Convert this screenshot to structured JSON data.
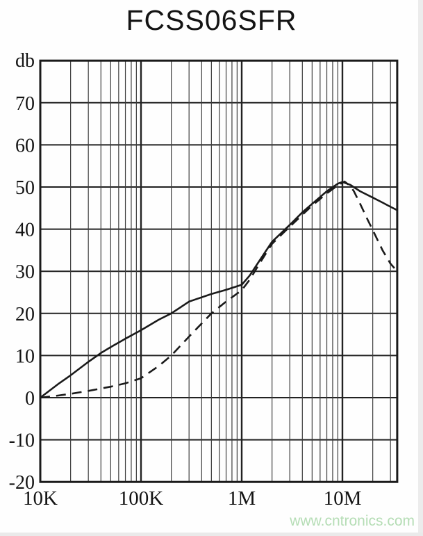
{
  "title": "FCSS06SFR",
  "watermark": "www.cntronics.com",
  "colors": {
    "curve": "#1a1a1a",
    "grid_major": "#222222",
    "grid_minor": "#3d3d3d",
    "border": "#1a1a1a",
    "text": "#141414",
    "watermark_green": "#b5ddb5",
    "background": "#fefefe"
  },
  "chart_data": {
    "type": "line",
    "title": "FCSS06SFR",
    "xlabel": "",
    "ylabel": "db",
    "grid": true,
    "legend": false,
    "x_axis": {
      "scale": "log",
      "unit": "Hz",
      "range": [
        10000,
        35000000
      ],
      "tick_values": [
        10000,
        100000,
        1000000,
        10000000
      ],
      "tick_labels": [
        "10K",
        "100K",
        "1M",
        "10M"
      ]
    },
    "y_axis": {
      "label": "db",
      "range": [
        -20,
        80
      ],
      "gridline_step": 10,
      "ticks": [
        70,
        60,
        50,
        40,
        30,
        20,
        10,
        0,
        -10,
        -20
      ]
    },
    "series": [
      {
        "name": "solid-curve",
        "style": "solid",
        "points": [
          [
            10000,
            0
          ],
          [
            15000,
            3.2
          ],
          [
            20000,
            5.3
          ],
          [
            30000,
            8.5
          ],
          [
            40000,
            10.6
          ],
          [
            50000,
            12.0
          ],
          [
            70000,
            14.0
          ],
          [
            100000,
            16.0
          ],
          [
            150000,
            18.5
          ],
          [
            200000,
            20.0
          ],
          [
            300000,
            22.8
          ],
          [
            500000,
            24.6
          ],
          [
            700000,
            25.6
          ],
          [
            1000000,
            26.8
          ],
          [
            1200000,
            29.0
          ],
          [
            1500000,
            32.5
          ],
          [
            2000000,
            37.0
          ],
          [
            3000000,
            41.0
          ],
          [
            4000000,
            44.0
          ],
          [
            5000000,
            46.0
          ],
          [
            7000000,
            49.0
          ],
          [
            9000000,
            50.8
          ],
          [
            10000000,
            51.2
          ],
          [
            12000000,
            50.5
          ],
          [
            15000000,
            49.0
          ],
          [
            20000000,
            47.5
          ],
          [
            25000000,
            46.3
          ],
          [
            30000000,
            45.3
          ],
          [
            35000000,
            44.5
          ]
        ]
      },
      {
        "name": "dashed-curve",
        "style": "dashed",
        "points": [
          [
            10000,
            0
          ],
          [
            15000,
            0.5
          ],
          [
            20000,
            0.9
          ],
          [
            30000,
            1.6
          ],
          [
            50000,
            2.6
          ],
          [
            70000,
            3.4
          ],
          [
            100000,
            4.6
          ],
          [
            150000,
            7.5
          ],
          [
            200000,
            10.0
          ],
          [
            300000,
            14.5
          ],
          [
            500000,
            20.0
          ],
          [
            700000,
            22.8
          ],
          [
            1000000,
            25.5
          ],
          [
            1200000,
            28.0
          ],
          [
            1500000,
            31.8
          ],
          [
            2000000,
            36.5
          ],
          [
            3000000,
            40.6
          ],
          [
            5000000,
            45.6
          ],
          [
            7000000,
            48.5
          ],
          [
            9000000,
            50.4
          ],
          [
            10500000,
            51.3
          ],
          [
            12000000,
            50.2
          ],
          [
            13000000,
            49.0
          ],
          [
            15000000,
            46.0
          ],
          [
            18000000,
            42.0
          ],
          [
            20000000,
            39.8
          ],
          [
            25000000,
            35.0
          ],
          [
            30000000,
            31.8
          ],
          [
            35000000,
            30.0
          ]
        ]
      }
    ]
  }
}
